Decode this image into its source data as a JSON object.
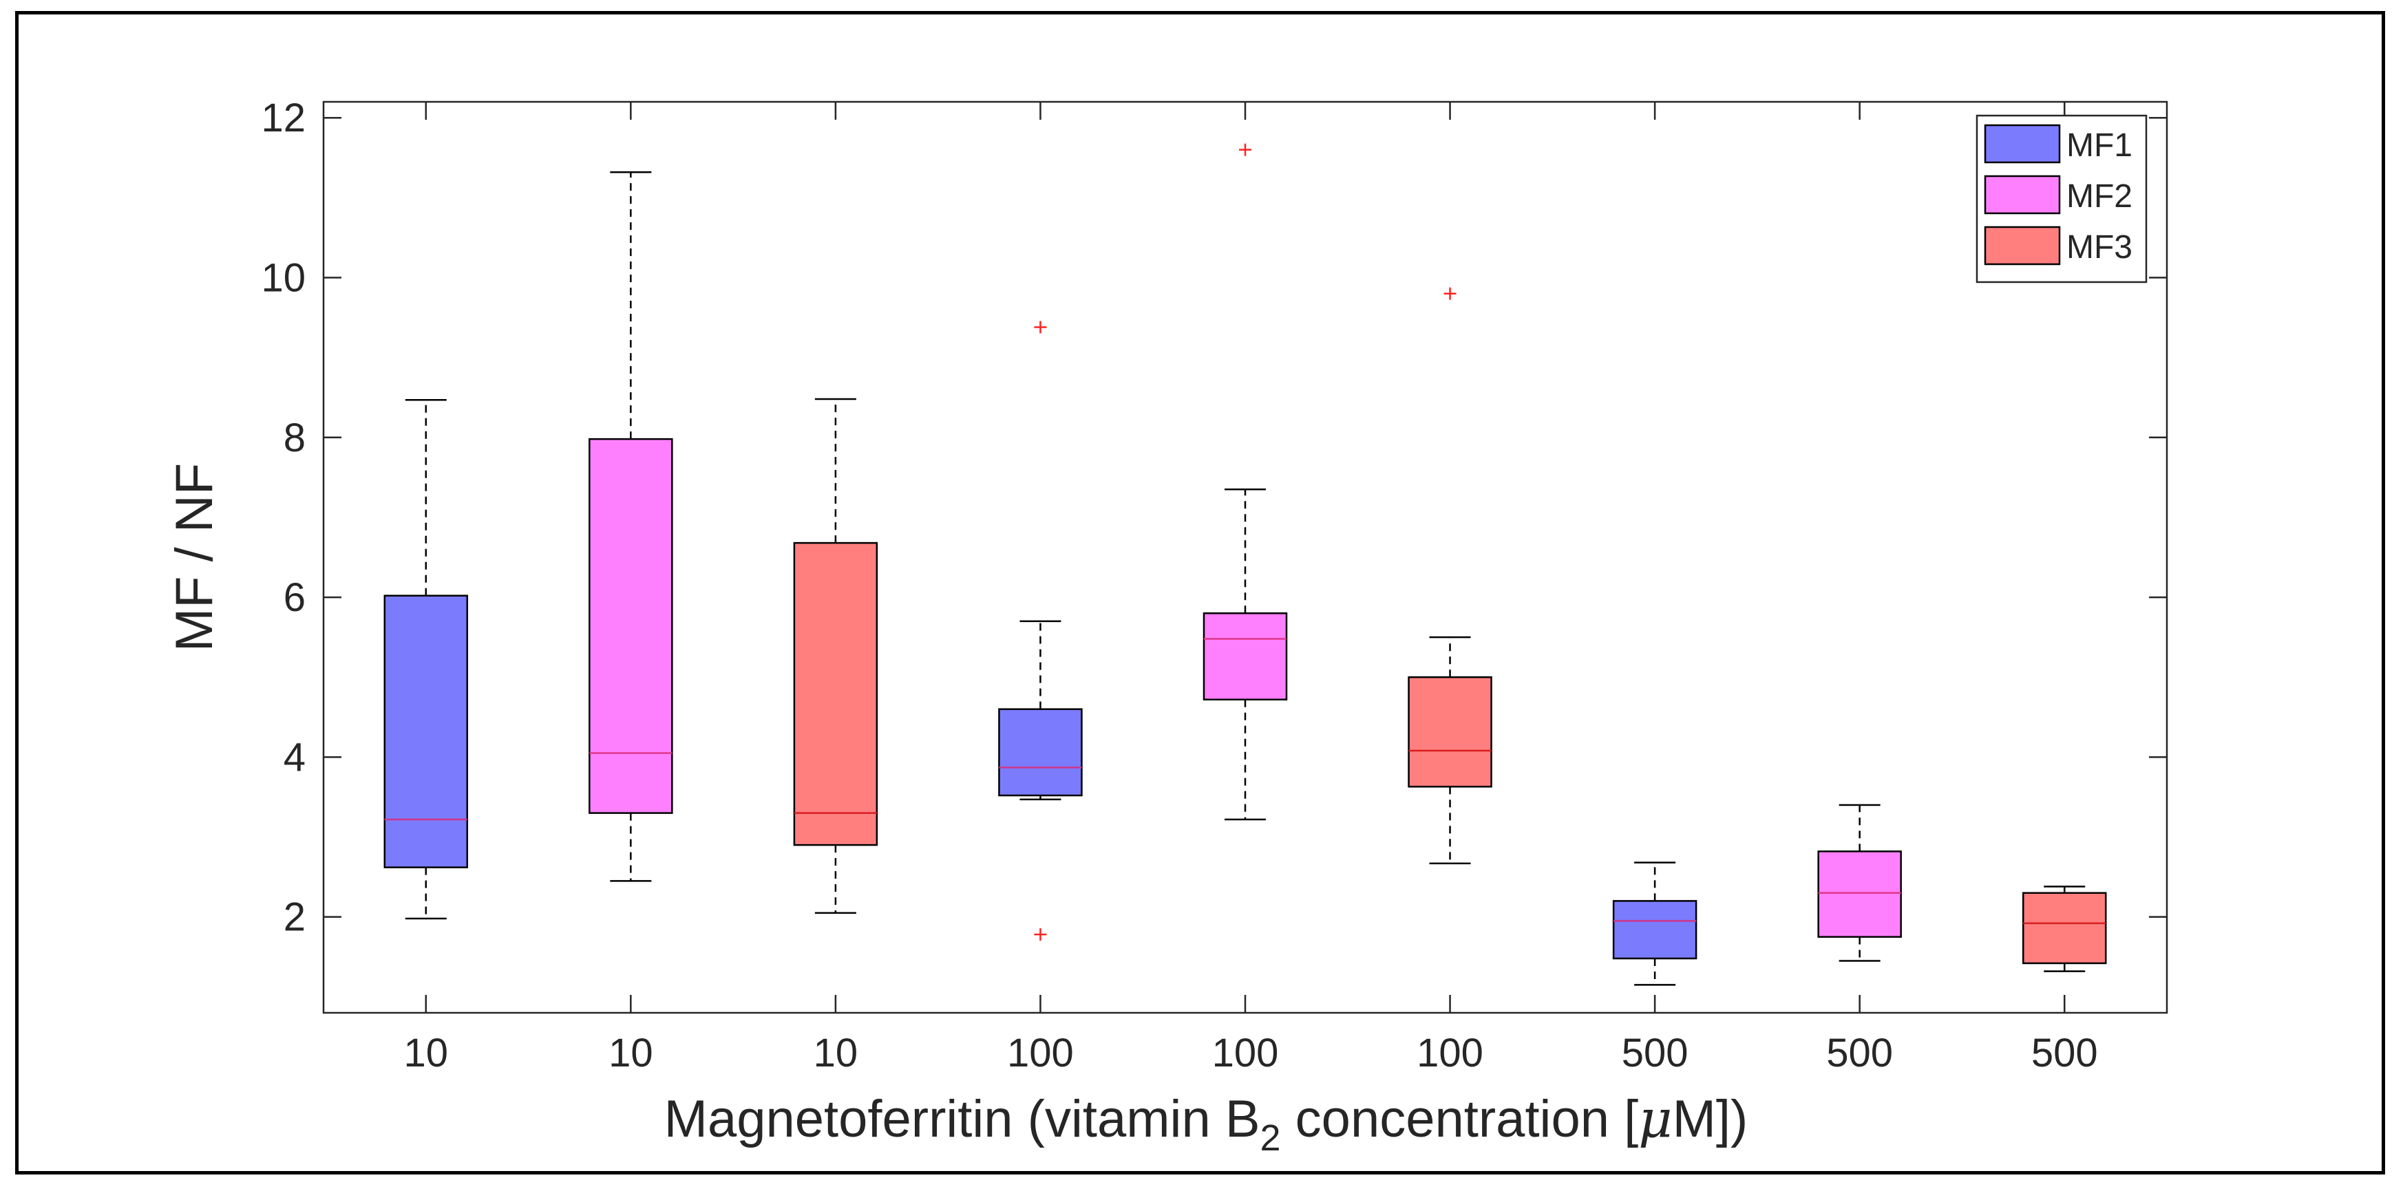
{
  "chart_data": {
    "type": "boxplot",
    "title": "",
    "xlabel": {
      "prefix": "Magnetoferritin (vitamin B",
      "subscript": "2",
      "suffix_before_mu": " concentration [",
      "mu": "μ",
      "suffix_after_mu": "M])"
    },
    "ylabel": "MF / NF",
    "ylim": [
      0.8,
      12.2
    ],
    "yticks": [
      2,
      4,
      6,
      8,
      10,
      12
    ],
    "grid": false,
    "legend_position": "top-right",
    "categories": [
      "10",
      "10",
      "10",
      "100",
      "100",
      "100",
      "500",
      "500",
      "500"
    ],
    "series": [
      {
        "name": "MF1",
        "color": "#7b7bfd",
        "median_color": "#d0358a"
      },
      {
        "name": "MF2",
        "color": "#ff80ff",
        "median_color": "#e0368c"
      },
      {
        "name": "MF3",
        "color": "#ff7f7f",
        "median_color": "#d81e1e"
      }
    ],
    "boxes": [
      {
        "category": "10",
        "series": "MF1",
        "whisker_low": 1.98,
        "q1": 2.62,
        "median": 3.22,
        "q3": 6.02,
        "whisker_high": 8.47,
        "outliers": []
      },
      {
        "category": "10",
        "series": "MF2",
        "whisker_low": 2.45,
        "q1": 3.3,
        "median": 4.05,
        "q3": 7.98,
        "whisker_high": 11.32,
        "outliers": []
      },
      {
        "category": "10",
        "series": "MF3",
        "whisker_low": 2.05,
        "q1": 2.9,
        "median": 3.3,
        "q3": 6.68,
        "whisker_high": 8.48,
        "outliers": []
      },
      {
        "category": "100",
        "series": "MF1",
        "whisker_low": 3.47,
        "q1": 3.52,
        "median": 3.87,
        "q3": 4.6,
        "whisker_high": 5.7,
        "outliers": [
          9.38,
          1.78
        ]
      },
      {
        "category": "100",
        "series": "MF2",
        "whisker_low": 3.22,
        "q1": 4.72,
        "median": 5.48,
        "q3": 5.8,
        "whisker_high": 7.35,
        "outliers": [
          11.6
        ]
      },
      {
        "category": "100",
        "series": "MF3",
        "whisker_low": 2.67,
        "q1": 3.63,
        "median": 4.08,
        "q3": 5.0,
        "whisker_high": 5.5,
        "outliers": [
          9.8
        ]
      },
      {
        "category": "500",
        "series": "MF1",
        "whisker_low": 1.15,
        "q1": 1.48,
        "median": 1.95,
        "q3": 2.2,
        "whisker_high": 2.68,
        "outliers": []
      },
      {
        "category": "500",
        "series": "MF2",
        "whisker_low": 1.45,
        "q1": 1.75,
        "median": 2.3,
        "q3": 2.82,
        "whisker_high": 3.4,
        "outliers": []
      },
      {
        "category": "500",
        "series": "MF3",
        "whisker_low": 1.32,
        "q1": 1.42,
        "median": 1.92,
        "q3": 2.3,
        "whisker_high": 2.38,
        "outliers": []
      }
    ]
  }
}
